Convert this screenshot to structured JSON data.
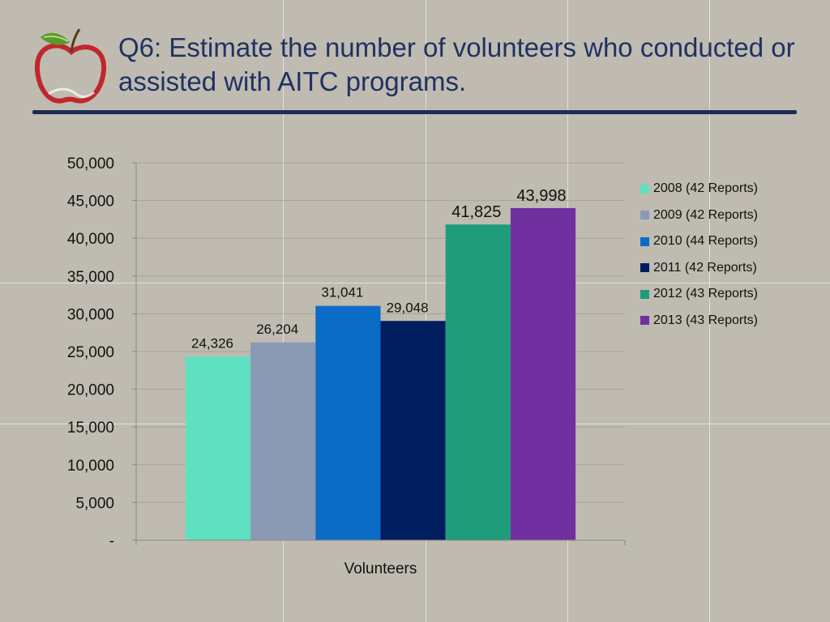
{
  "header": {
    "title": "Q6: Estimate the number of volunteers who conducted or assisted with AITC programs."
  },
  "logo": {
    "icon": "apple-icon",
    "colors": {
      "apple": "#c0272d",
      "leaf": "#5a9a2a"
    }
  },
  "chart_data": {
    "type": "bar",
    "categories": [
      "Volunteers"
    ],
    "xlabel": "Volunteers",
    "ylabel": "",
    "ylim": [
      0,
      50000
    ],
    "yticks": [
      0,
      5000,
      10000,
      15000,
      20000,
      25000,
      30000,
      35000,
      40000,
      45000,
      50000
    ],
    "ytick_labels": [
      "-",
      "5,000",
      "10,000",
      "15,000",
      "20,000",
      "25,000",
      "30,000",
      "35,000",
      "40,000",
      "45,000",
      "50,000"
    ],
    "grid": true,
    "legend_position": "right",
    "series": [
      {
        "name": "2008 (42 Reports)",
        "values": [
          24326
        ],
        "label": "24,326",
        "color": "#5fe0c0"
      },
      {
        "name": "2009 (42 Reports)",
        "values": [
          26204
        ],
        "label": "26,204",
        "color": "#8a9ab5"
      },
      {
        "name": "2010 (44 Reports)",
        "values": [
          31041
        ],
        "label": "31,041",
        "color": "#0b6cc6"
      },
      {
        "name": "2011 (42 Reports)",
        "values": [
          29048
        ],
        "label": "29,048",
        "color": "#001e5e"
      },
      {
        "name": "2012 (43 Reports)",
        "values": [
          41825
        ],
        "label": "41,825",
        "color": "#1f9c7a"
      },
      {
        "name": "2013 (43 Reports)",
        "values": [
          43998
        ],
        "label": "43,998",
        "color": "#7030a0"
      }
    ]
  }
}
